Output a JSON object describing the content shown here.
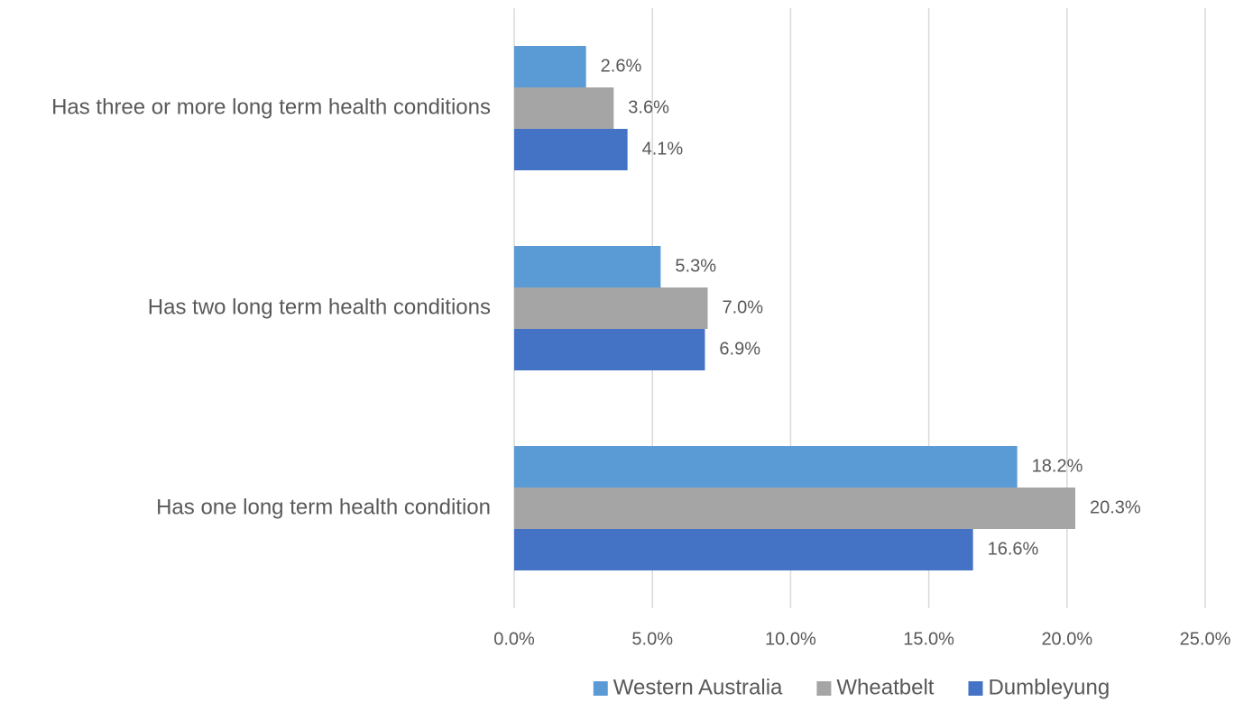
{
  "chart_data": {
    "type": "hbar",
    "categories": [
      "Has three or more long term health conditions",
      "Has two long term health conditions",
      "Has one long term health condition"
    ],
    "series": [
      {
        "name": "Western Australia",
        "color": "#5b9bd5",
        "values": [
          2.6,
          5.3,
          18.2
        ],
        "value_labels": [
          "2.6%",
          "5.3%",
          "18.2%"
        ]
      },
      {
        "name": "Wheatbelt",
        "color": "#a5a5a5",
        "values": [
          3.6,
          7.0,
          20.3
        ],
        "value_labels": [
          "3.6%",
          "7.0%",
          "20.3%"
        ]
      },
      {
        "name": "Dumbleyung",
        "color": "#4472c4",
        "values": [
          4.1,
          6.9,
          16.6
        ],
        "value_labels": [
          "4.1%",
          "6.9%",
          "16.6%"
        ]
      }
    ],
    "xlim": [
      0,
      25
    ],
    "xticks": [
      {
        "value": 0,
        "label": "0.0%"
      },
      {
        "value": 5,
        "label": "5.0%"
      },
      {
        "value": 10,
        "label": "10.0%"
      },
      {
        "value": 15,
        "label": "15.0%"
      },
      {
        "value": 20,
        "label": "20.0%"
      },
      {
        "value": 25,
        "label": "25.0%"
      }
    ],
    "grid": true,
    "legend": "bottom"
  }
}
